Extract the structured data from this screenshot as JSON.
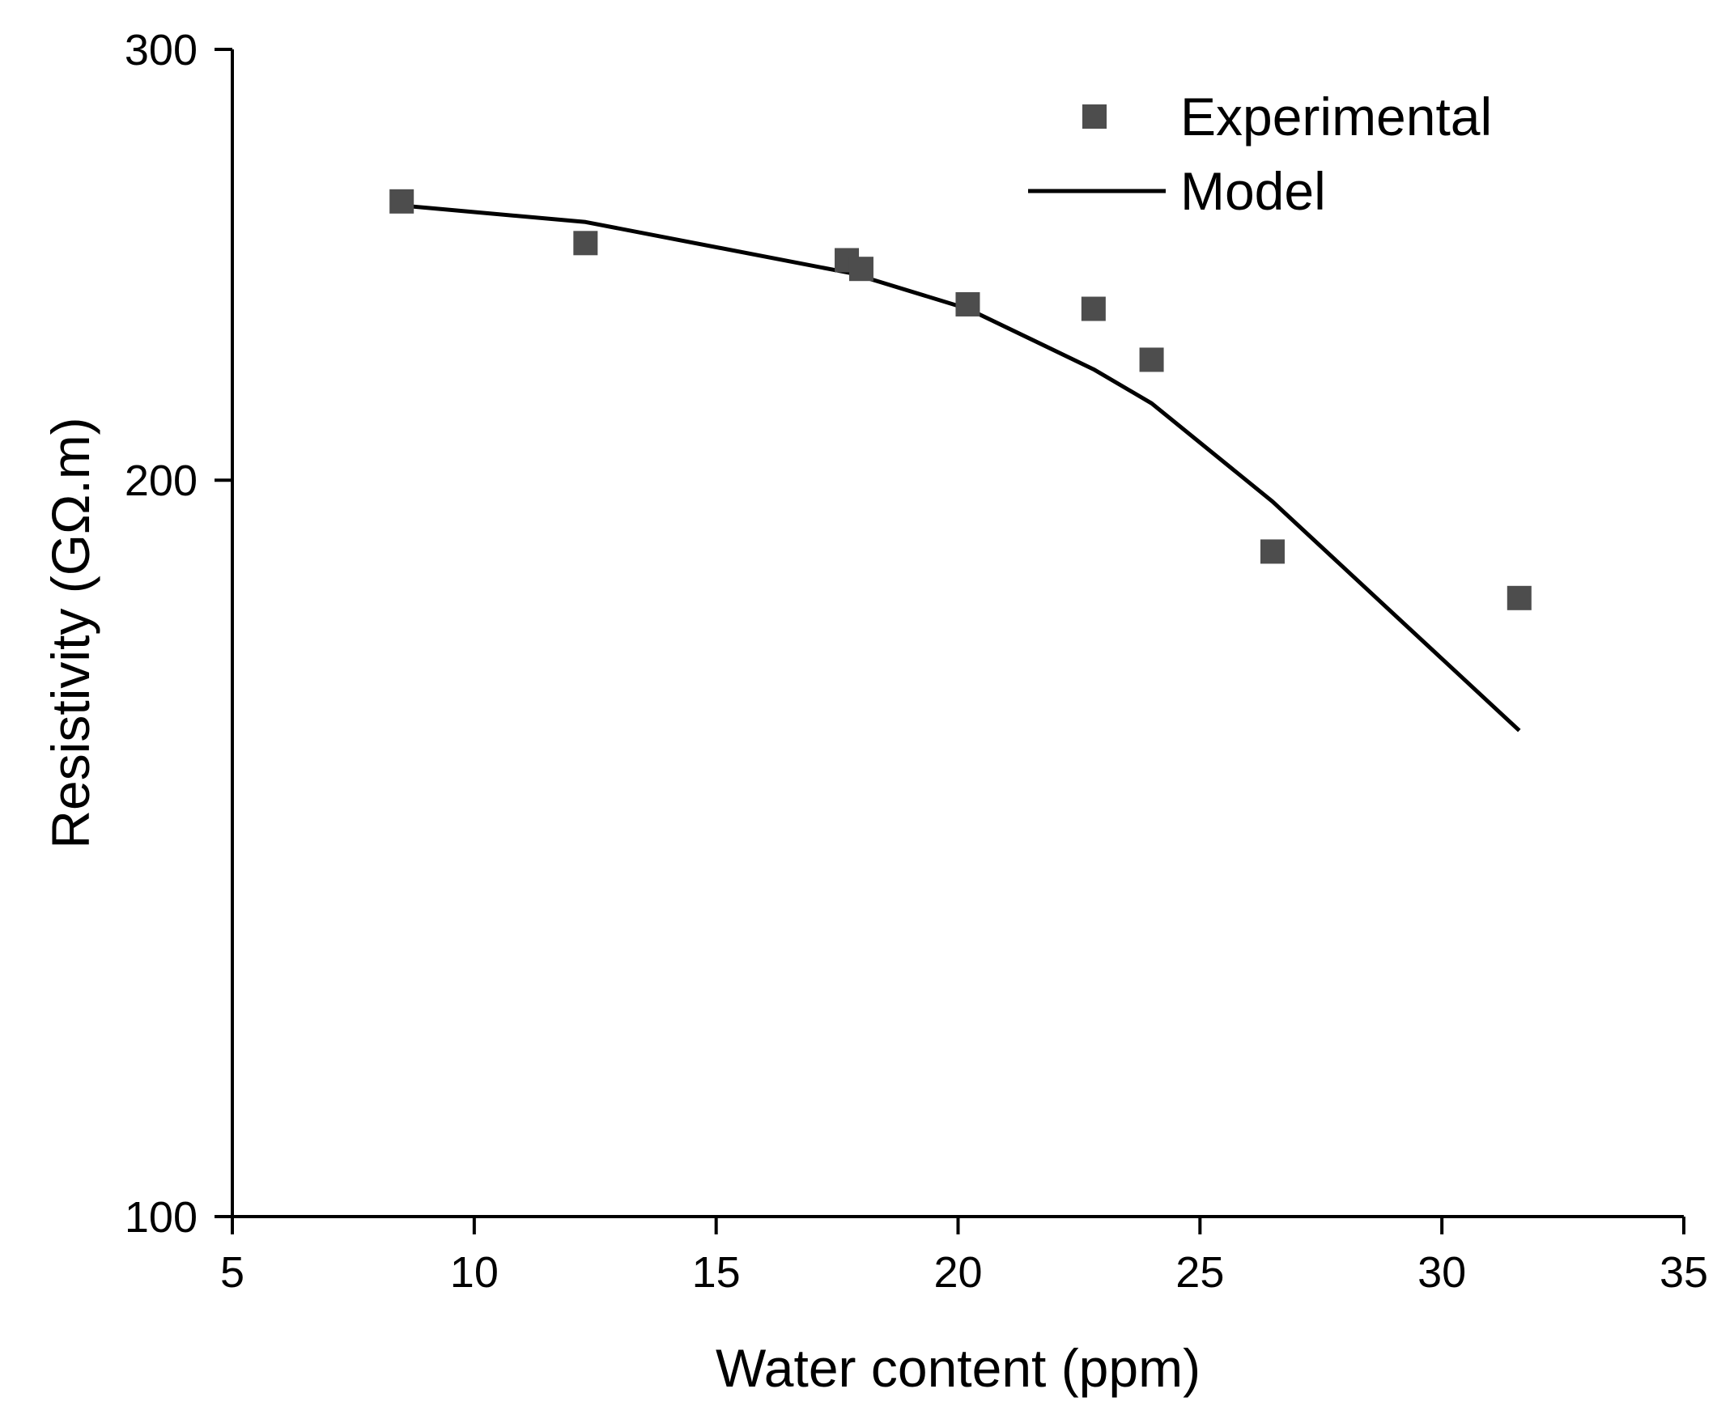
{
  "chart_data": {
    "type": "scatter",
    "title": "",
    "xlabel": "Water content (ppm)",
    "ylabel": "Resistivity (GΩ.m)",
    "xlim": [
      5,
      35
    ],
    "ylim": [
      100,
      300
    ],
    "y_scale": "log",
    "xticks": [
      5,
      10,
      15,
      20,
      25,
      30,
      35
    ],
    "yticks": [
      100,
      200,
      300
    ],
    "grid": false,
    "legend_position": "top-right",
    "series": [
      {
        "name": "Experimental",
        "kind": "scatter",
        "marker": "square",
        "color": "#4d4d4d",
        "x": [
          8.5,
          12.3,
          17.7,
          18.0,
          20.2,
          22.8,
          24.0,
          26.5,
          31.6
        ],
        "y": [
          260,
          250,
          246,
          244,
          236,
          235,
          224,
          187,
          179
        ]
      },
      {
        "name": "Model",
        "kind": "line",
        "color": "#000000",
        "x": [
          8.5,
          12.3,
          17.8,
          20.2,
          22.8,
          24.0,
          26.5,
          31.6
        ],
        "y": [
          259,
          255,
          243,
          235,
          222,
          215,
          196,
          158
        ]
      }
    ]
  }
}
